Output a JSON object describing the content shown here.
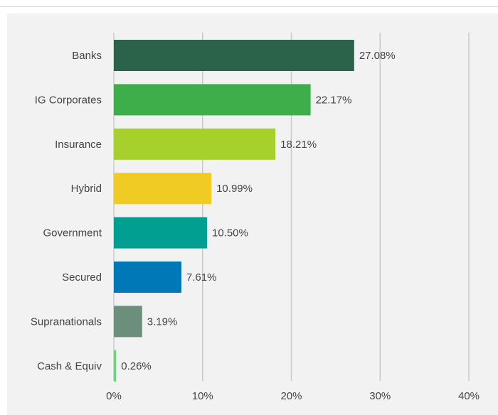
{
  "chart_data": {
    "type": "bar",
    "orientation": "horizontal",
    "title": "",
    "xlabel": "",
    "ylabel": "",
    "categories": [
      "Banks",
      "IG Corporates",
      "Insurance",
      "Hybrid",
      "Government",
      "Secured",
      "Supranationals",
      "Cash & Equiv"
    ],
    "values": [
      27.08,
      22.17,
      18.21,
      10.99,
      10.5,
      7.61,
      3.19,
      0.26
    ],
    "value_labels": [
      "27.08%",
      "22.17%",
      "18.21%",
      "10.99%",
      "10.50%",
      "7.61%",
      "3.19%",
      "0.26%"
    ],
    "colors": [
      "#2a6349",
      "#3dae4a",
      "#a6d12d",
      "#f0cb24",
      "#009f92",
      "#0077b6",
      "#6b8f7b",
      "#6fcf7c"
    ],
    "xlim": [
      0,
      40
    ],
    "x_ticks": [
      0,
      10,
      20,
      30,
      40
    ],
    "x_tick_labels": [
      "0%",
      "10%",
      "20%",
      "30%",
      "40%"
    ],
    "grid": true,
    "legend": "none"
  }
}
